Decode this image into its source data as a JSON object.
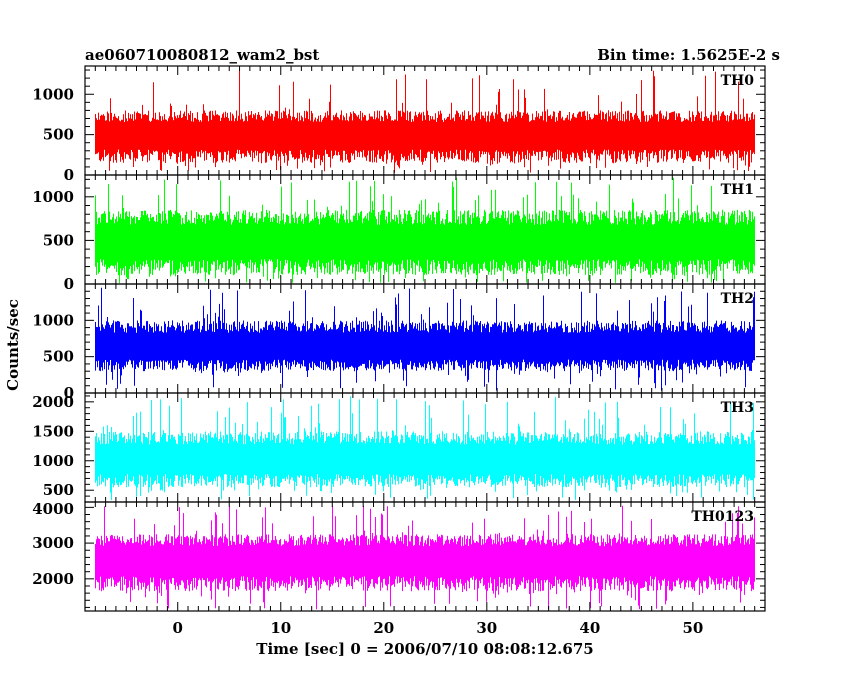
{
  "header": {
    "left_title": "ae060710080812_wam2_bst",
    "right_title": "Bin time: 1.5625E-2 s"
  },
  "chart_data": {
    "type": "line",
    "xlabel": "Time [sec] 0 = 2006/07/10 08:08:12.675",
    "ylabel": "Counts/sec",
    "xlim": [
      -9,
      57
    ],
    "x_data_range": [
      -8,
      56
    ],
    "x_ticks": [
      0,
      10,
      20,
      30,
      40,
      50
    ],
    "x_tick_labels": [
      "0",
      "10",
      "20",
      "30",
      "40",
      "50"
    ],
    "bin_time_s": 0.015625,
    "grid": false,
    "panels": [
      {
        "name": "TH0",
        "color": "#ff0000",
        "ylim": [
          0,
          1350
        ],
        "y_ticks": [
          0,
          500,
          1000
        ],
        "y_tick_labels": [
          "0",
          "500",
          "1000"
        ],
        "band": {
          "typical_low": 150,
          "typical_high": 800,
          "min": 20,
          "max": 1330,
          "mean": 480
        }
      },
      {
        "name": "TH1",
        "color": "#00ff00",
        "ylim": [
          0,
          1250
        ],
        "y_ticks": [
          0,
          500,
          1000
        ],
        "y_tick_labels": [
          "0",
          "500",
          "1000"
        ],
        "band": {
          "typical_low": 100,
          "typical_high": 850,
          "min": 10,
          "max": 1230,
          "mean": 470
        }
      },
      {
        "name": "TH2",
        "color": "#0000ff",
        "ylim": [
          0,
          1500
        ],
        "y_ticks": [
          0,
          500,
          1000
        ],
        "y_tick_labels": [
          "0",
          "500",
          "1000"
        ],
        "band": {
          "typical_low": 300,
          "typical_high": 1000,
          "min": 30,
          "max": 1450,
          "mean": 620
        }
      },
      {
        "name": "TH3",
        "color": "#00ffff",
        "ylim": [
          300,
          2150
        ],
        "y_ticks": [
          500,
          1000,
          1500,
          2000
        ],
        "y_tick_labels": [
          "500",
          "1000",
          "1500",
          "2000"
        ],
        "band": {
          "typical_low": 550,
          "typical_high": 1500,
          "min": 330,
          "max": 2100,
          "mean": 1000
        }
      },
      {
        "name": "TH0123",
        "color": "#ff00ff",
        "ylim": [
          1100,
          4150
        ],
        "y_ticks": [
          2000,
          3000,
          4000
        ],
        "y_tick_labels": [
          "2000",
          "3000",
          "4000"
        ],
        "band": {
          "typical_low": 1650,
          "typical_high": 3250,
          "min": 1150,
          "max": 4050,
          "mean": 2500
        }
      }
    ]
  }
}
